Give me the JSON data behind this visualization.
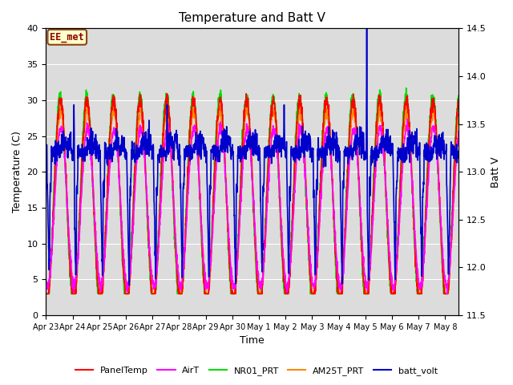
{
  "title": "Temperature and Batt V",
  "ylabel_left": "Temperature (C)",
  "ylabel_right": "Batt V",
  "xlabel": "Time",
  "ylim_left": [
    0,
    40
  ],
  "ylim_right": [
    11.5,
    14.5
  ],
  "background_color": "#dcdcdc",
  "legend_label": "EE_met",
  "x_tick_labels": [
    "Apr 23",
    "Apr 24",
    "Apr 25",
    "Apr 26",
    "Apr 27",
    "Apr 28",
    "Apr 29",
    "Apr 30",
    "May 1",
    "May 2",
    "May 3",
    "May 4",
    "May 5",
    "May 6",
    "May 7",
    "May 8"
  ],
  "series": {
    "PanelTemp": {
      "color": "#ff0000",
      "lw": 1.2
    },
    "AirT": {
      "color": "#ff00ff",
      "lw": 1.2
    },
    "NR01_PRT": {
      "color": "#00dd00",
      "lw": 1.2
    },
    "AM25T_PRT": {
      "color": "#ff8800",
      "lw": 1.2
    },
    "batt_volt": {
      "color": "#0000cc",
      "lw": 1.2
    }
  },
  "yticks_left": [
    0,
    5,
    10,
    15,
    20,
    25,
    30,
    35,
    40
  ],
  "yticks_right": [
    11.5,
    12.0,
    12.5,
    13.0,
    13.5,
    14.0,
    14.5
  ],
  "n_days": 15.5,
  "pts_per_day": 144
}
